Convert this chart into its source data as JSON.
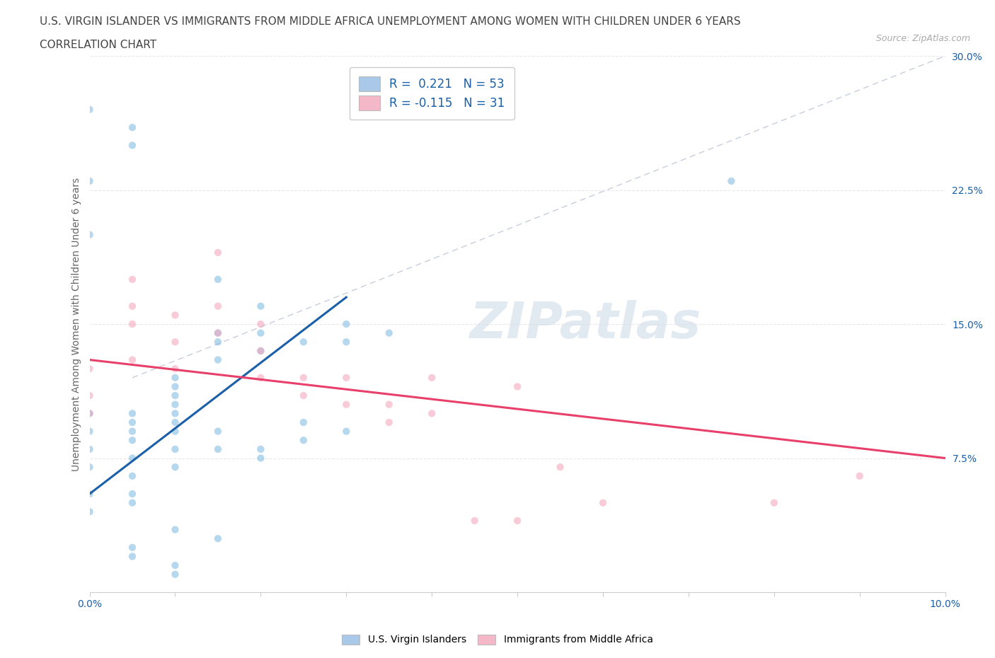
{
  "title_line1": "U.S. VIRGIN ISLANDER VS IMMIGRANTS FROM MIDDLE AFRICA UNEMPLOYMENT AMONG WOMEN WITH CHILDREN UNDER 6 YEARS",
  "title_line2": "CORRELATION CHART",
  "source_text": "Source: ZipAtlas.com",
  "ylabel": "Unemployment Among Women with Children Under 6 years",
  "xlim": [
    0,
    0.1
  ],
  "ylim": [
    0,
    0.3
  ],
  "xticks": [
    0.0,
    0.01,
    0.02,
    0.03,
    0.04,
    0.05,
    0.06,
    0.07,
    0.08,
    0.09,
    0.1
  ],
  "yticks": [
    0.0,
    0.075,
    0.15,
    0.225,
    0.3
  ],
  "ytick_labels": [
    "",
    "7.5%",
    "15.0%",
    "22.5%",
    "30.0%"
  ],
  "watermark": "ZIPatlas",
  "legend_blue_label": "R =  0.221   N = 53",
  "legend_pink_label": "R = -0.115   N = 31",
  "legend_blue_color": "#aac8e8",
  "legend_pink_color": "#f5b8c8",
  "scatter_blue_color": "#7ab8e0",
  "scatter_pink_color": "#f5a0b8",
  "trendline_blue_color": "#1a5fa8",
  "trendline_pink_color": "#e8406a",
  "trendline_dash_color": "#c0c8d8",
  "background_color": "#ffffff",
  "grid_color": "#e8e8e8",
  "title_color": "#444444",
  "axis_label_color": "#666666",
  "tick_label_color_blue": "#1a5fa8",
  "blue_scatter_x": [
    0.0,
    0.0,
    0.0,
    0.0,
    0.0,
    0.0,
    0.005,
    0.005,
    0.005,
    0.005,
    0.005,
    0.005,
    0.005,
    0.005,
    0.01,
    0.01,
    0.01,
    0.01,
    0.01,
    0.01,
    0.01,
    0.01,
    0.01,
    0.015,
    0.015,
    0.015,
    0.015,
    0.015,
    0.02,
    0.02,
    0.02,
    0.02,
    0.025,
    0.025,
    0.025,
    0.03,
    0.03,
    0.005,
    0.005,
    0.0,
    0.0,
    0.0,
    0.015,
    0.02,
    0.03,
    0.035,
    0.01,
    0.015,
    0.005,
    0.005,
    0.01,
    0.01,
    0.075
  ],
  "blue_scatter_y": [
    0.1,
    0.09,
    0.08,
    0.07,
    0.055,
    0.045,
    0.1,
    0.095,
    0.09,
    0.085,
    0.075,
    0.065,
    0.055,
    0.05,
    0.12,
    0.11,
    0.1,
    0.09,
    0.08,
    0.07,
    0.115,
    0.105,
    0.095,
    0.145,
    0.14,
    0.13,
    0.09,
    0.08,
    0.145,
    0.135,
    0.08,
    0.075,
    0.14,
    0.095,
    0.085,
    0.14,
    0.09,
    0.25,
    0.26,
    0.27,
    0.23,
    0.2,
    0.175,
    0.16,
    0.15,
    0.145,
    0.035,
    0.03,
    0.025,
    0.02,
    0.015,
    0.01,
    0.23
  ],
  "pink_scatter_x": [
    0.0,
    0.0,
    0.0,
    0.005,
    0.005,
    0.005,
    0.005,
    0.01,
    0.01,
    0.01,
    0.015,
    0.015,
    0.015,
    0.02,
    0.02,
    0.02,
    0.025,
    0.025,
    0.03,
    0.03,
    0.035,
    0.035,
    0.04,
    0.04,
    0.045,
    0.05,
    0.05,
    0.055,
    0.06,
    0.08,
    0.09
  ],
  "pink_scatter_y": [
    0.125,
    0.11,
    0.1,
    0.175,
    0.16,
    0.15,
    0.13,
    0.155,
    0.14,
    0.125,
    0.19,
    0.16,
    0.145,
    0.15,
    0.135,
    0.12,
    0.12,
    0.11,
    0.12,
    0.105,
    0.105,
    0.095,
    0.12,
    0.1,
    0.04,
    0.115,
    0.04,
    0.07,
    0.05,
    0.05,
    0.065
  ],
  "blue_trend_x": [
    0.0,
    0.03
  ],
  "blue_trend_y": [
    0.055,
    0.165
  ],
  "pink_trend_x": [
    0.0,
    0.1
  ],
  "pink_trend_y": [
    0.13,
    0.075
  ],
  "dash_trend_x": [
    0.005,
    0.1
  ],
  "dash_trend_y": [
    0.12,
    0.3
  ],
  "title_fontsize": 11,
  "subtitle_fontsize": 11,
  "source_fontsize": 9,
  "axis_label_fontsize": 10,
  "tick_label_fontsize": 10,
  "legend_fontsize": 12,
  "watermark_fontsize": 52,
  "scatter_size": 55,
  "scatter_alpha": 0.55
}
